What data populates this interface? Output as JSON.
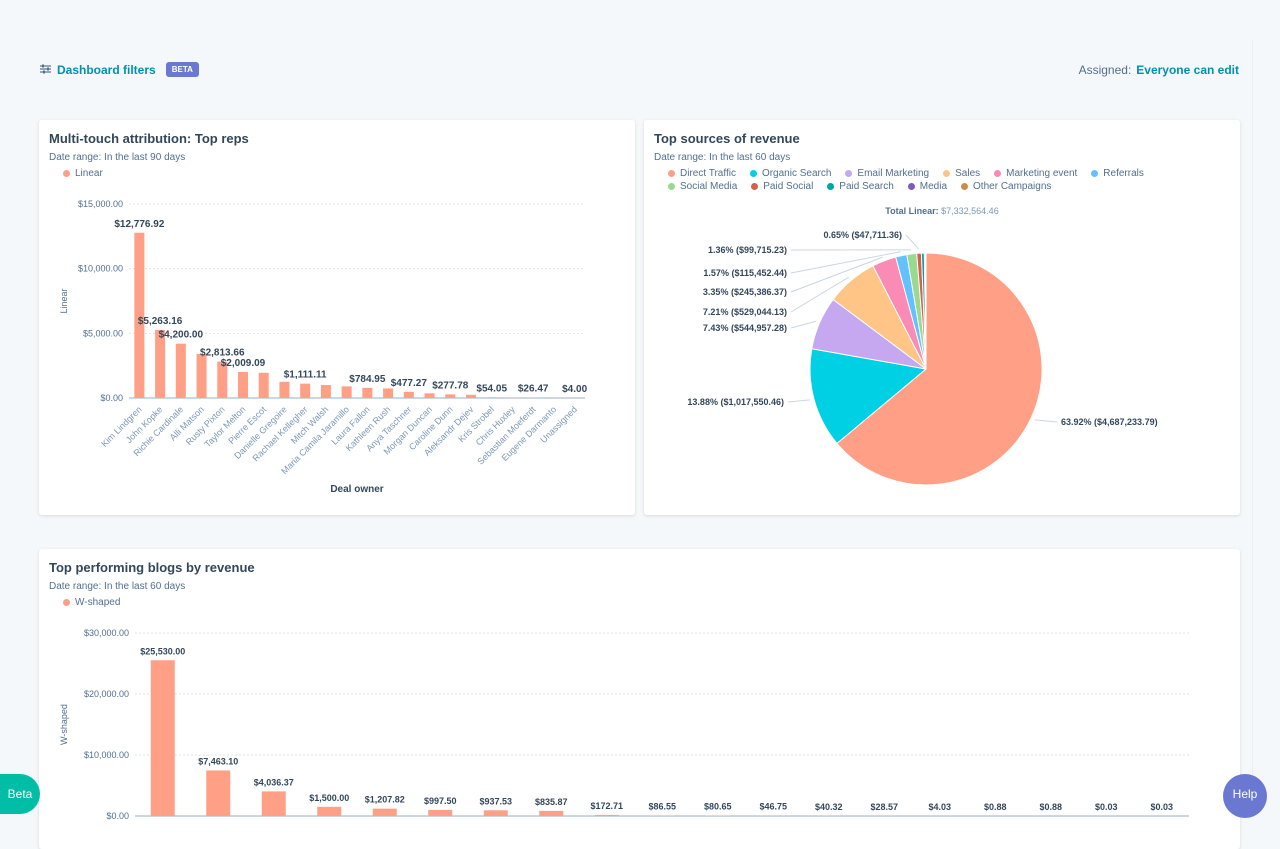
{
  "header": {
    "filters_label": "Dashboard filters",
    "beta_badge": "BETA",
    "assigned_label": "Assigned:",
    "assigned_value": "Everyone can edit"
  },
  "floating": {
    "beta": "Beta",
    "help": "Help"
  },
  "colors": {
    "bar": "#ff9f85",
    "accent": "#0091ae"
  },
  "chart_data": [
    {
      "type": "bar",
      "title": "Multi-touch attribution: Top reps",
      "date_range": "Date range: In the last 90 days",
      "legend": "Linear",
      "xlabel": "Deal owner",
      "ylabel": "Linear",
      "ylim": [
        0,
        15000
      ],
      "yticks": [
        "$0.00",
        "$5,000.00",
        "$10,000.00",
        "$15,000.00"
      ],
      "grid": true,
      "categories": [
        "Kim Lindgren",
        "John Kopke",
        "Richie Cardinale",
        "Alli Matson",
        "Rusty Pixton",
        "Taylor Melton",
        "Pierre Escot",
        "Danielle Gregoire",
        "Rachael Kellegher",
        "Mitch Walsh",
        "Maria Camila Jaramillo",
        "Laura Fallon",
        "Kathleen Rush",
        "Anya Taschner",
        "Morgan Duncan",
        "Caroline Dunn",
        "Aleksandr Dejev",
        "Kris Strobel",
        "Chris Huxley",
        "Sebastian Moeferdt",
        "Eugene Darmanto",
        "Unassigned"
      ],
      "values": [
        12776.92,
        5263.16,
        4200.0,
        3400,
        2813.66,
        2009.09,
        1950,
        1250,
        1111.11,
        1000,
        900,
        784.95,
        740,
        477.27,
        360,
        277.78,
        250,
        54.05,
        30,
        26.47,
        10,
        4.0
      ],
      "data_labels": [
        "$12,776.92",
        "$5,263.16",
        "$4,200.00",
        "",
        "$2,813.66",
        "$2,009.09",
        "",
        "",
        "$1,111.11",
        "",
        "",
        "$784.95",
        "",
        "$477.27",
        "",
        "$277.78",
        "",
        "$54.05",
        "",
        "$26.47",
        "",
        "$4.00"
      ]
    },
    {
      "type": "pie",
      "title": "Top sources of revenue",
      "date_range": "Date range: In the last 60 days",
      "total_label": "Total Linear:",
      "total_value": "$7,332,564.46",
      "slices": [
        {
          "name": "Direct Traffic",
          "value": 63.92,
          "color": "#ff9f85",
          "label": "63.92% ($4,687,233.79)"
        },
        {
          "name": "Organic Search",
          "value": 13.88,
          "color": "#00d0e4",
          "label": "13.88% ($1,017,550.46)"
        },
        {
          "name": "Email Marketing",
          "value": 7.43,
          "color": "#c5a8f0",
          "label": "7.43% ($544,957.28)"
        },
        {
          "name": "Sales",
          "value": 7.21,
          "color": "#fec587",
          "label": "7.21% ($529,044.13)"
        },
        {
          "name": "Marketing event",
          "value": 3.35,
          "color": "#f98bb5",
          "label": "3.35% ($245,386.37)"
        },
        {
          "name": "Referrals",
          "value": 1.57,
          "color": "#63c1fd",
          "label": "1.57% ($115,452.44)"
        },
        {
          "name": "Social Media",
          "value": 1.36,
          "color": "#9ad990",
          "label": "1.36% ($99,715.23)"
        },
        {
          "name": "Paid Social",
          "value": 0.65,
          "color": "#d6604c",
          "label": "0.65% ($47,711.36)"
        },
        {
          "name": "Paid Search",
          "value": 0.4,
          "color": "#00a4a6",
          "label": ""
        },
        {
          "name": "Media",
          "value": 0.15,
          "color": "#7d5cb5",
          "label": ""
        },
        {
          "name": "Other Campaigns",
          "value": 0.08,
          "color": "#cc8b4d",
          "label": ""
        }
      ]
    },
    {
      "type": "bar",
      "title": "Top performing blogs by revenue",
      "date_range": "Date range: In the last 60 days",
      "legend": "W-shaped",
      "ylabel": "W-shaped",
      "ylim": [
        0,
        30000
      ],
      "yticks": [
        "$0.00",
        "$10,000.00",
        "$20,000.00",
        "$30,000.00"
      ],
      "grid": true,
      "values": [
        25530.0,
        7463.1,
        4036.37,
        1500.0,
        1207.82,
        997.5,
        937.53,
        835.87,
        172.71,
        86.55,
        80.65,
        46.75,
        40.32,
        28.57,
        4.03,
        0.88,
        0.88,
        0.03,
        0.03
      ],
      "data_labels": [
        "$25,530.00",
        "$7,463.10",
        "$4,036.37",
        "$1,500.00",
        "$1,207.82",
        "$997.50",
        "$937.53",
        "$835.87",
        "$172.71",
        "$86.55",
        "$80.65",
        "$46.75",
        "$40.32",
        "$28.57",
        "$4.03",
        "$0.88",
        "$0.88",
        "$0.03",
        "$0.03"
      ]
    }
  ]
}
